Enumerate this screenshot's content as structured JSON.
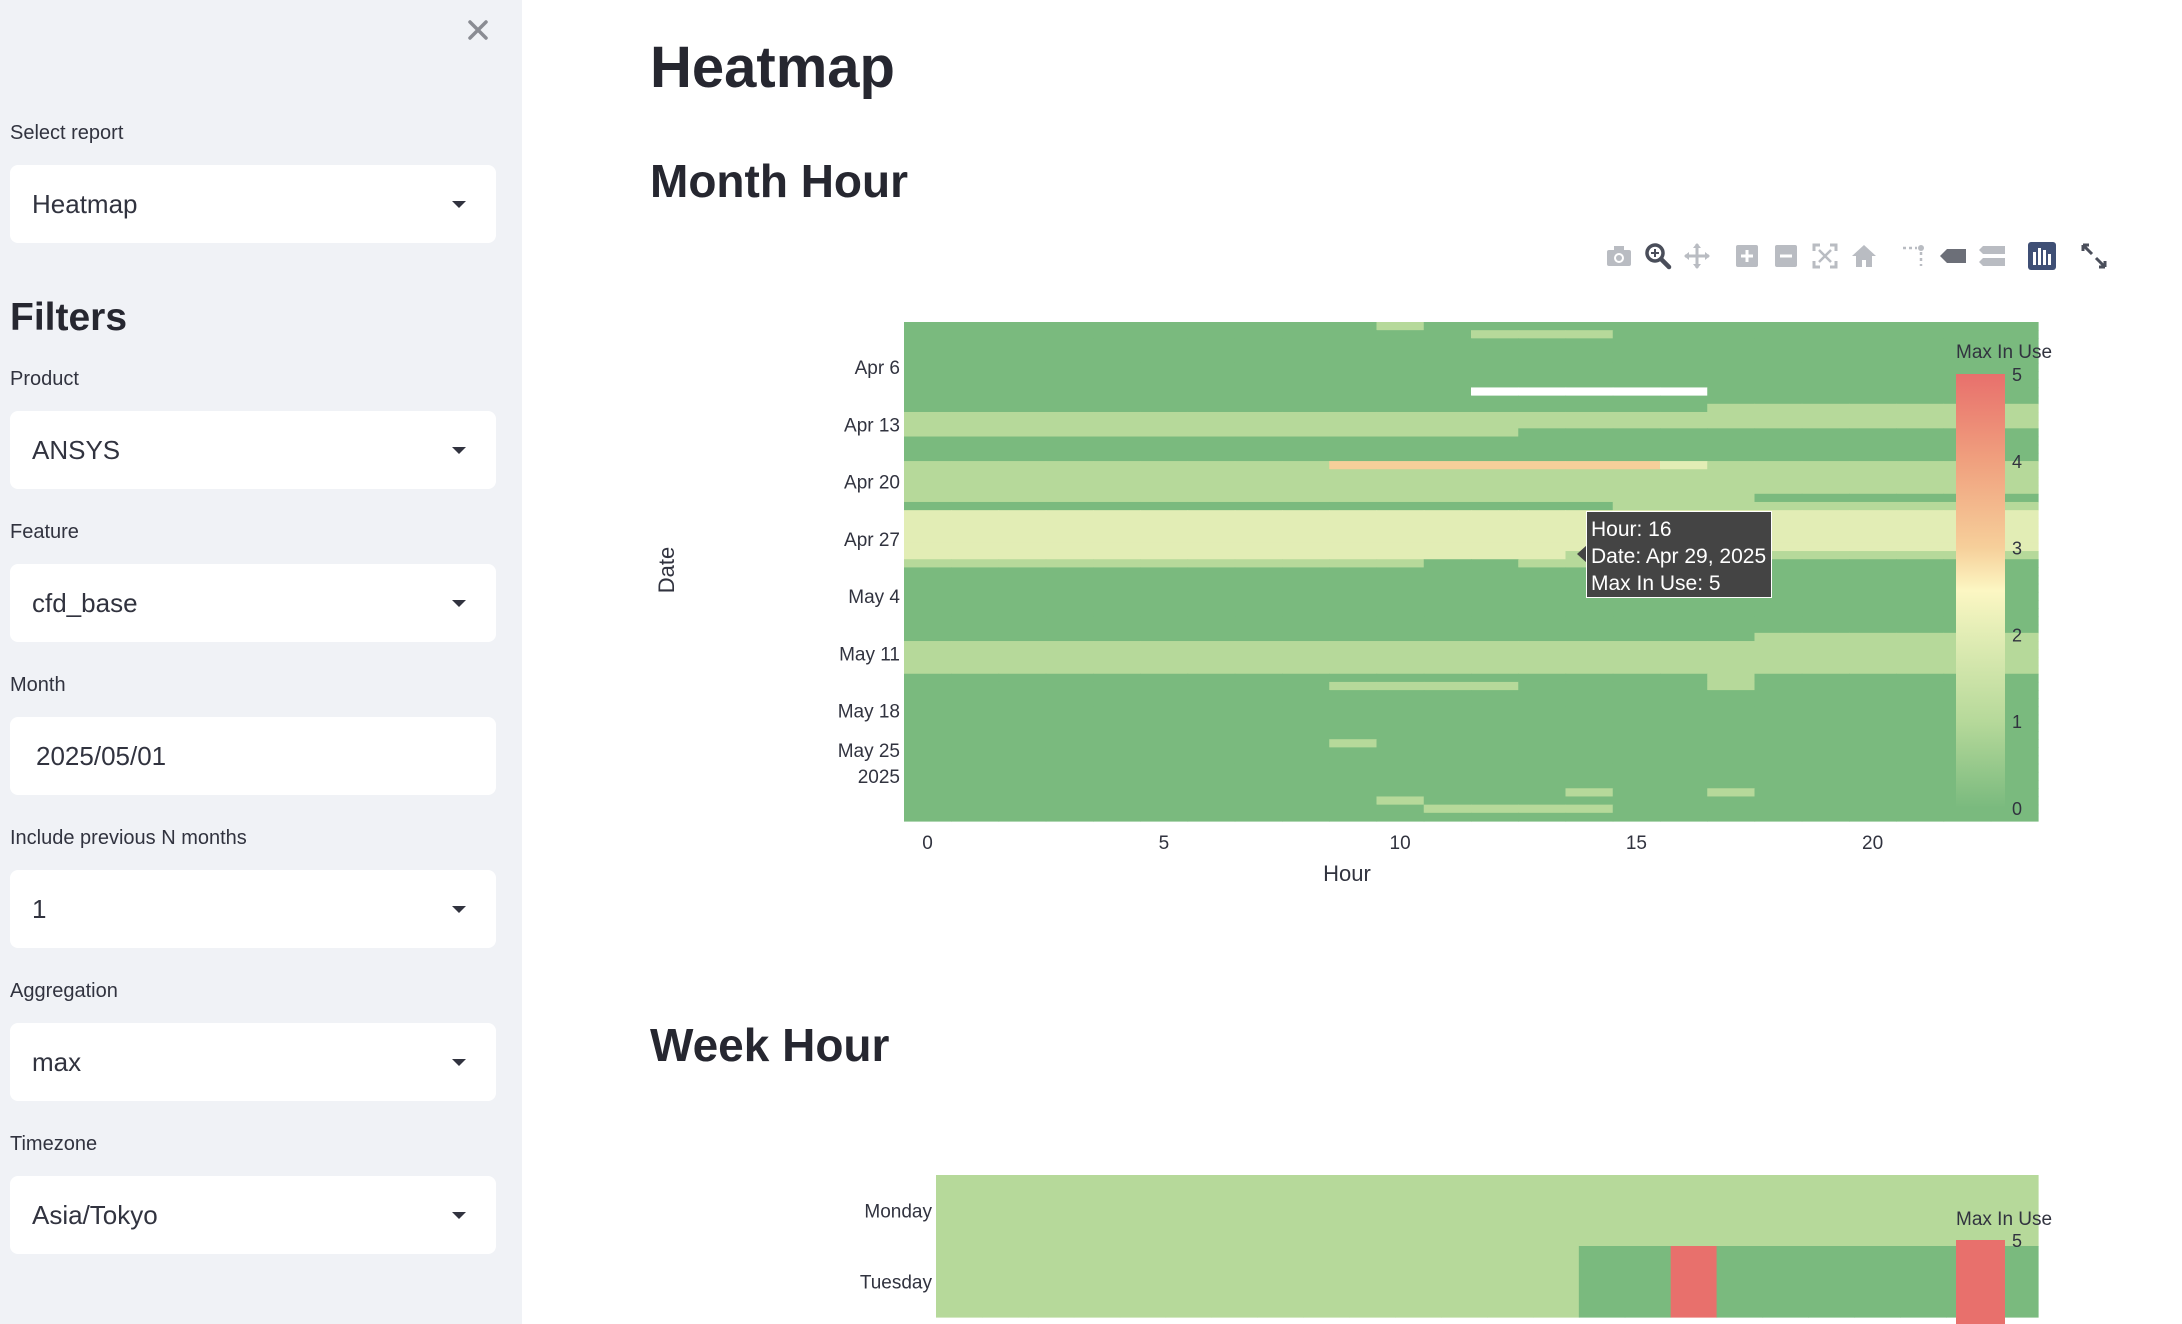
{
  "sidebar": {
    "select_report_label": "Select report",
    "select_report_value": "Heatmap",
    "filters_title": "Filters",
    "product_label": "Product",
    "product_value": "ANSYS",
    "feature_label": "Feature",
    "feature_value": "cfd_base",
    "month_label": "Month",
    "month_value": "2025/05/01",
    "prev_months_label": "Include previous N months",
    "prev_months_value": "1",
    "aggregation_label": "Aggregation",
    "aggregation_value": "max",
    "timezone_label": "Timezone",
    "timezone_value": "Asia/Tokyo"
  },
  "main": {
    "page_title": "Heatmap",
    "section1_title": "Month Hour",
    "section2_title": "Week Hour"
  },
  "toolbar": {
    "icons": [
      "camera-icon",
      "zoom-icon",
      "pan-icon",
      "zoom-in-icon",
      "zoom-out-icon",
      "autoscale-icon",
      "reset-axes-icon",
      "spike-lines-icon",
      "hover-closest-icon",
      "hover-compare-icon",
      "plotly-logo-icon",
      "fullscreen-icon"
    ]
  },
  "tooltip": {
    "line1": "Hour: 16",
    "line2": "Date: Apr 29, 2025",
    "line3": "Max In Use: 5"
  },
  "colors": {
    "c0": "#7aba7e",
    "c1": "#b6d99a",
    "c2": "#e2edb5",
    "c2_5": "#fcf7c3",
    "c3": "#f6cf9a",
    "c4": "#f0a07e",
    "c5": "#e8706c",
    "white": "#ffffff"
  },
  "chart_data": [
    {
      "type": "heatmap",
      "title": "Month Hour",
      "xlabel": "Hour",
      "ylabel": "Date",
      "x_ticks": [
        0,
        5,
        10,
        15,
        20
      ],
      "y_ticks": [
        "Apr 6",
        "Apr 13",
        "Apr 20",
        "Apr 27",
        "May 4",
        "May 11",
        "May 18",
        "May 25\n2025"
      ],
      "x_range": [
        0,
        23
      ],
      "y_range": [
        "2025-04-01",
        "2025-05-31"
      ],
      "colorbar": {
        "title": "Max In Use",
        "min": 0,
        "max": 5,
        "ticks": [
          0,
          1,
          2,
          3,
          4,
          5
        ]
      },
      "rows": [
        {
          "date": "2025-04-01",
          "base": 0,
          "cells": {
            "10": 1
          }
        },
        {
          "date": "2025-04-02",
          "base": 0,
          "cells": {
            "12": 1,
            "13": 1,
            "14": 1
          }
        },
        {
          "date": "2025-04-03",
          "base": 0
        },
        {
          "date": "2025-04-04",
          "base": 0
        },
        {
          "date": "2025-04-05",
          "base": 0
        },
        {
          "date": "2025-04-06",
          "base": 0
        },
        {
          "date": "2025-04-07",
          "base": 0
        },
        {
          "date": "2025-04-08",
          "base": 0
        },
        {
          "date": "2025-04-09",
          "base": 0,
          "gaps": [
            12,
            13,
            14,
            15,
            16
          ]
        },
        {
          "date": "2025-04-10",
          "base": 0
        },
        {
          "date": "2025-04-11",
          "base": 0,
          "cells": {
            "17": 1,
            "18": 1,
            "19": 1,
            "20": 1,
            "21": 1,
            "22": 1,
            "23": 1
          }
        },
        {
          "date": "2025-04-12",
          "base": 1
        },
        {
          "date": "2025-04-13",
          "base": 1
        },
        {
          "date": "2025-04-14",
          "base": 1,
          "cells": {
            "13": 0,
            "14": 0,
            "15": 0,
            "16": 0,
            "17": 0,
            "18": 0,
            "19": 0,
            "20": 0,
            "21": 0,
            "22": 0,
            "23": 0
          }
        },
        {
          "date": "2025-04-15",
          "base": 0
        },
        {
          "date": "2025-04-16",
          "base": 0
        },
        {
          "date": "2025-04-17",
          "base": 0
        },
        {
          "date": "2025-04-18",
          "base": 1,
          "cells": {
            "9": 3,
            "10": 3,
            "11": 3,
            "12": 3,
            "13": 3,
            "14": 3,
            "15": 3,
            "16": 2
          }
        },
        {
          "date": "2025-04-19",
          "base": 1
        },
        {
          "date": "2025-04-20",
          "base": 1
        },
        {
          "date": "2025-04-21",
          "base": 1
        },
        {
          "date": "2025-04-22",
          "base": 1,
          "cells": {
            "18": 0,
            "19": 0,
            "20": 0,
            "21": 0,
            "22": 0,
            "23": 0
          }
        },
        {
          "date": "2025-04-23",
          "base": 0,
          "cells": {
            "15": 1,
            "16": 1,
            "17": 1,
            "18": 1,
            "19": 1,
            "20": 1,
            "21": 1,
            "22": 1,
            "23": 1
          }
        },
        {
          "date": "2025-04-24",
          "base": 2
        },
        {
          "date": "2025-04-25",
          "base": 2
        },
        {
          "date": "2025-04-26",
          "base": 2
        },
        {
          "date": "2025-04-27",
          "base": 2
        },
        {
          "date": "2025-04-28",
          "base": 2
        },
        {
          "date": "2025-04-29",
          "base": 2,
          "cells": {
            "14": 1,
            "15": 1,
            "16": 5,
            "17": 1,
            "18": 1,
            "19": 1,
            "20": 1,
            "21": 1,
            "22": 1,
            "23": 1
          }
        },
        {
          "date": "2025-04-30",
          "base": 1,
          "cells": {
            "11": 0,
            "12": 0,
            "16": 0,
            "17": 0,
            "18": 0,
            "19": 0,
            "20": 0,
            "21": 0,
            "22": 0,
            "23": 0
          }
        },
        {
          "date": "2025-05-01",
          "base": 0
        },
        {
          "date": "2025-05-02",
          "base": 0
        },
        {
          "date": "2025-05-03",
          "base": 0
        },
        {
          "date": "2025-05-04",
          "base": 0
        },
        {
          "date": "2025-05-05",
          "base": 0
        },
        {
          "date": "2025-05-06",
          "base": 0
        },
        {
          "date": "2025-05-07",
          "base": 0
        },
        {
          "date": "2025-05-08",
          "base": 0
        },
        {
          "date": "2025-05-09",
          "base": 0,
          "cells": {
            "18": 1,
            "19": 1,
            "20": 1,
            "21": 1,
            "22": 1,
            "23": 1
          }
        },
        {
          "date": "2025-05-10",
          "base": 1
        },
        {
          "date": "2025-05-11",
          "base": 1
        },
        {
          "date": "2025-05-12",
          "base": 1
        },
        {
          "date": "2025-05-13",
          "base": 1
        },
        {
          "date": "2025-05-14",
          "base": 1,
          "cells": {
            "0": 0,
            "1": 0,
            "2": 0,
            "3": 0,
            "4": 0,
            "5": 0,
            "6": 0,
            "7": 0,
            "8": 0,
            "9": 0,
            "10": 0,
            "11": 0,
            "12": 0,
            "13": 0,
            "14": 0,
            "15": 0,
            "16": 0,
            "18": 0,
            "19": 0,
            "20": 0,
            "21": 0,
            "22": 0,
            "23": 0
          }
        },
        {
          "date": "2025-05-15",
          "base": 0,
          "cells": {
            "9": 1,
            "10": 1,
            "11": 1,
            "12": 1,
            "17": 1
          }
        },
        {
          "date": "2025-05-16",
          "base": 0
        },
        {
          "date": "2025-05-17",
          "base": 0
        },
        {
          "date": "2025-05-18",
          "base": 0
        },
        {
          "date": "2025-05-19",
          "base": 0
        },
        {
          "date": "2025-05-20",
          "base": 0
        },
        {
          "date": "2025-05-21",
          "base": 0
        },
        {
          "date": "2025-05-22",
          "base": 0,
          "cells": {
            "9": 1
          }
        },
        {
          "date": "2025-05-23",
          "base": 0
        },
        {
          "date": "2025-05-24",
          "base": 0
        },
        {
          "date": "2025-05-25",
          "base": 0
        },
        {
          "date": "2025-05-26",
          "base": 0
        },
        {
          "date": "2025-05-27",
          "base": 0
        },
        {
          "date": "2025-05-28",
          "base": 0,
          "cells": {
            "14": 1,
            "17": 1
          }
        },
        {
          "date": "2025-05-29",
          "base": 0,
          "cells": {
            "10": 1
          }
        },
        {
          "date": "2025-05-30",
          "base": 0,
          "cells": {
            "11": 1,
            "12": 1,
            "13": 1,
            "14": 1
          }
        },
        {
          "date": "2025-05-31",
          "base": 0
        }
      ]
    },
    {
      "type": "heatmap",
      "title": "Week Hour",
      "y_ticks": [
        "Monday",
        "Tuesday"
      ],
      "colorbar": {
        "title": "Max In Use",
        "max": 5
      },
      "rows": [
        {
          "day": "Monday",
          "base": 1
        },
        {
          "day": "Tuesday",
          "base": 1,
          "cells": {
            "14": 0,
            "15": 0,
            "16": 5,
            "17": 0,
            "18": 0,
            "19": 0,
            "20": 0,
            "21": 0,
            "22": 0,
            "23": 0
          }
        }
      ]
    }
  ]
}
